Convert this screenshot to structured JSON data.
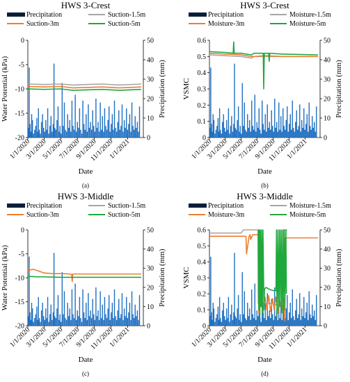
{
  "figure": {
    "panels_order": [
      "a",
      "b",
      "c",
      "d"
    ]
  },
  "colors": {
    "precipitation": "#1F6FC0",
    "suction_1_5m": "#A6A6A6",
    "suction_3m": "#ED7D31",
    "suction_5m": "#1FA83C",
    "axis": "#000000"
  },
  "chart_data": [
    {
      "id": "a",
      "panel_label": "(a)",
      "type": "line",
      "title": "HWS 3-Crest",
      "xlabel": "Date",
      "ylabel_left": "Water Potential (kPa)",
      "ylabel_right": "Precipitation (mm)",
      "ylim_left": [
        -20,
        0
      ],
      "yticks_left": [
        "0",
        "-5",
        "-10",
        "-15",
        "-20"
      ],
      "ylim_right": [
        0,
        50
      ],
      "yticks_right": [
        "0",
        "10",
        "20",
        "30",
        "40",
        "50"
      ],
      "x_ticks": [
        "1/1/2020",
        "3/1/2020",
        "5/1/2020",
        "7/1/2020",
        "9/1/2020",
        "11/1/2020",
        "1/1/2021"
      ],
      "xlim": [
        "2020-01-01",
        "2021-02-28"
      ],
      "legend": [
        "Precipitation",
        "Suction-1.5m",
        "Suction-3m",
        "Suction-5m"
      ],
      "series": [
        {
          "name": "Suction-1.5m",
          "key": "suction_1_5m",
          "x": [
            "2020-01-01",
            "2020-03-01",
            "2020-05-01",
            "2020-06-15",
            "2020-08-01",
            "2020-10-01",
            "2020-12-01",
            "2021-02-20"
          ],
          "values": [
            -9.0,
            -9.1,
            -9.0,
            -9.2,
            -9.1,
            -9.0,
            -9.2,
            -9.0
          ]
        },
        {
          "name": "Suction-3m",
          "key": "suction_3m",
          "x": [
            "2020-01-01",
            "2020-03-01",
            "2020-05-01",
            "2020-06-15",
            "2020-08-01",
            "2020-10-01",
            "2020-12-01",
            "2021-02-20"
          ],
          "values": [
            -9.5,
            -9.6,
            -9.5,
            -9.8,
            -9.7,
            -9.6,
            -9.8,
            -9.6
          ]
        },
        {
          "name": "Suction-5m",
          "key": "suction_5m",
          "x": [
            "2020-01-01",
            "2020-03-01",
            "2020-05-01",
            "2020-06-15",
            "2020-08-01",
            "2020-10-01",
            "2020-12-01",
            "2021-02-20"
          ],
          "values": [
            -10.0,
            -10.1,
            -10.0,
            -10.3,
            -10.2,
            -10.1,
            -10.3,
            -10.1
          ]
        }
      ],
      "precip_series": "precip_2020"
    },
    {
      "id": "b",
      "panel_label": "(b)",
      "type": "line",
      "title": "HWS 3-Crest",
      "xlabel": "Date",
      "ylabel_left": "VSMC",
      "ylabel_right": "Precipitation (mm)",
      "ylim_left": [
        0,
        0.6
      ],
      "yticks_left": [
        "0",
        "0.1",
        "0.2",
        "0.3",
        "0.4",
        "0.5",
        "0.6"
      ],
      "ylim_right": [
        0,
        50
      ],
      "yticks_right": [
        "0",
        "10",
        "20",
        "30",
        "40",
        "50"
      ],
      "x_ticks": [
        "1/1/2020",
        "3/1/2020",
        "5/1/2020",
        "7/1/2020",
        "9/1/2020",
        "11/1/2020",
        "1/1/2021"
      ],
      "xlim": [
        "2020-01-01",
        "2021-02-28"
      ],
      "legend": [
        "Precipitation",
        "Moisture-1.5m",
        "Moisture-3m",
        "Moisture-5m"
      ],
      "series": [
        {
          "name": "Moisture-1.5m",
          "key": "suction_1_5m",
          "x": [
            "2020-01-01",
            "2020-03-01",
            "2020-05-01",
            "2020-06-10",
            "2020-06-20",
            "2020-08-01",
            "2020-10-01",
            "2021-02-20"
          ],
          "values": [
            0.51,
            0.505,
            0.5,
            0.49,
            0.5,
            0.5,
            0.5,
            0.5
          ]
        },
        {
          "name": "Moisture-3m",
          "key": "suction_3m",
          "x": [
            "2020-01-01",
            "2020-03-01",
            "2020-05-01",
            "2020-06-10",
            "2020-06-20",
            "2020-08-01",
            "2020-10-01",
            "2021-02-20"
          ],
          "values": [
            0.52,
            0.515,
            0.51,
            0.5,
            0.5,
            0.505,
            0.5,
            0.5
          ]
        },
        {
          "name": "Moisture-5m",
          "key": "suction_5m",
          "x": [
            "2020-01-01",
            "2020-03-01",
            "2020-04-01",
            "2020-04-03",
            "2020-04-05",
            "2020-05-01",
            "2020-06-10",
            "2020-06-20",
            "2020-07-25",
            "2020-07-27",
            "2020-07-29",
            "2020-08-15",
            "2020-08-17",
            "2020-08-19",
            "2020-10-01",
            "2021-02-20"
          ],
          "values": [
            0.53,
            0.525,
            0.52,
            0.59,
            0.52,
            0.52,
            0.51,
            0.52,
            0.52,
            0.3,
            0.52,
            0.52,
            0.47,
            0.52,
            0.515,
            0.51
          ]
        }
      ],
      "precip_series": "precip_2020"
    },
    {
      "id": "c",
      "panel_label": "(c)",
      "type": "line",
      "title": "HWS 3-Middle",
      "xlabel": "Date",
      "ylabel_left": "Water Potential (kPa)",
      "ylabel_right": "Precipitation (mm)",
      "ylim_left": [
        -20,
        0
      ],
      "yticks_left": [
        "0",
        "-5",
        "-10",
        "-15",
        "-20"
      ],
      "ylim_right": [
        0,
        50
      ],
      "yticks_right": [
        "0",
        "10",
        "20",
        "30",
        "40",
        "50"
      ],
      "x_ticks": [
        "1/1/2020",
        "3/1/2020",
        "5/1/2020",
        "7/1/2020",
        "9/1/2020",
        "11/1/2020",
        "1/1/2021"
      ],
      "xlim": [
        "2020-01-01",
        "2021-02-28"
      ],
      "legend": [
        "Precipitation",
        "Suction-1.5m",
        "Suction-3m",
        "Suction-5m"
      ],
      "series": [
        {
          "name": "Suction-3m",
          "key": "suction_3m",
          "x": [
            "2020-01-01",
            "2020-01-20",
            "2020-02-10",
            "2020-03-01",
            "2020-04-01",
            "2020-05-01",
            "2020-06-01",
            "2020-06-10",
            "2020-06-12",
            "2020-06-14",
            "2020-07-01",
            "2020-08-01",
            "2020-10-01",
            "2020-12-01",
            "2021-02-20"
          ],
          "values": [
            -8.5,
            -8.2,
            -8.6,
            -9.0,
            -9.1,
            -9.1,
            -9.2,
            -9.3,
            -10.8,
            -9.2,
            -9.2,
            -9.2,
            -9.2,
            -9.2,
            -9.2
          ]
        },
        {
          "name": "Suction-5m",
          "key": "suction_5m",
          "x": [
            "2020-01-01",
            "2020-02-01",
            "2020-03-01",
            "2020-05-01",
            "2020-08-01",
            "2020-11-01",
            "2021-02-20"
          ],
          "values": [
            -9.7,
            -9.8,
            -9.8,
            -9.9,
            -9.9,
            -9.9,
            -9.9
          ]
        }
      ],
      "precip_series": "precip_2020"
    },
    {
      "id": "d",
      "panel_label": "(d)",
      "type": "line",
      "title": "HWS 3-Middle",
      "xlabel": "Date",
      "ylabel_left": "VSMC",
      "ylabel_right": "Precipitation (mm)",
      "ylim_left": [
        0,
        0.6
      ],
      "yticks_left": [
        "0",
        "0.1",
        "0.2",
        "0.3",
        "0.4",
        "0.5",
        "0.6"
      ],
      "ylim_right": [
        0,
        50
      ],
      "yticks_right": [
        "0",
        "10",
        "20",
        "30",
        "40",
        "50"
      ],
      "x_ticks": [
        "1/1/2020",
        "3/1/2020",
        "5/1/2020",
        "7/1/2020",
        "9/1/2020",
        "11/1/2020",
        "1/1/2021"
      ],
      "xlim": [
        "2020-01-01",
        "2021-02-28"
      ],
      "legend": [
        "Precipitation",
        "Moisture-1.5m",
        "Moisture-3m",
        "Moisture-5m"
      ],
      "series": [
        {
          "name": "Moisture-1.5m",
          "key": "suction_1_5m",
          "x": [
            "2020-01-01",
            "2020-03-01",
            "2020-05-01",
            "2020-05-10",
            "2020-05-12",
            "2020-06-01",
            "2020-06-15",
            "2020-07-05",
            "2020-07-06",
            "2020-08-01",
            "2020-09-01",
            "2020-09-02",
            "2020-10-10",
            "2020-10-12",
            "2020-10-13",
            "2020-10-25"
          ],
          "values": [
            0.58,
            0.58,
            0.58,
            0.6,
            0.6,
            0.6,
            0.6,
            0.6,
            0.14,
            0.14,
            0.14,
            0.13,
            0.13,
            0.6,
            0.6,
            0.6
          ]
        },
        {
          "name": "Moisture-3m",
          "key": "suction_3m",
          "x": [
            "2020-01-01",
            "2020-03-01",
            "2020-05-01",
            "2020-05-20",
            "2020-05-22",
            "2020-06-01",
            "2020-06-05",
            "2020-06-07",
            "2020-06-15",
            "2020-07-06",
            "2020-07-08",
            "2020-07-12",
            "2020-07-16",
            "2020-07-20",
            "2020-07-25",
            "2020-08-01",
            "2020-08-08",
            "2020-08-15",
            "2020-08-22",
            "2020-08-30",
            "2020-09-05",
            "2020-09-12",
            "2020-09-20",
            "2020-09-28",
            "2020-10-05",
            "2020-10-12",
            "2020-10-15",
            "2020-10-18",
            "2020-11-01",
            "2021-02-20"
          ],
          "values": [
            0.56,
            0.56,
            0.56,
            0.56,
            0.45,
            0.56,
            0.57,
            0.54,
            0.57,
            0.57,
            0.08,
            0.2,
            0.12,
            0.21,
            0.09,
            0.18,
            0.1,
            0.19,
            0.09,
            0.17,
            0.1,
            0.18,
            0.08,
            0.16,
            0.1,
            0.17,
            0.03,
            0.55,
            0.55,
            0.55
          ]
        },
        {
          "name": "Moisture-5m",
          "key": "suction_5m",
          "x": [
            "2020-07-05",
            "2020-07-06",
            "2020-07-08",
            "2020-07-10",
            "2020-07-12",
            "2020-07-14",
            "2020-07-17",
            "2020-07-19",
            "2020-07-22",
            "2020-07-24",
            "2020-07-28",
            "2020-07-30",
            "2020-08-05",
            "2020-08-15",
            "2020-09-01",
            "2020-09-12",
            "2020-09-14",
            "2020-09-16",
            "2020-09-20",
            "2020-09-22",
            "2020-09-26",
            "2020-09-28",
            "2020-10-02",
            "2020-10-04",
            "2020-10-08",
            "2020-10-10",
            "2020-10-14",
            "2020-10-16",
            "2020-10-20",
            "2020-10-22"
          ],
          "values": [
            0.6,
            0.6,
            0.1,
            0.6,
            0.05,
            0.6,
            0.12,
            0.6,
            0.08,
            0.6,
            0.1,
            0.23,
            0.24,
            0.23,
            0.22,
            0.22,
            0.6,
            0.05,
            0.6,
            0.1,
            0.6,
            0.12,
            0.6,
            0.08,
            0.6,
            0.06,
            0.6,
            0.1,
            0.6,
            0.2
          ]
        }
      ],
      "precip_series": "precip_2020"
    }
  ],
  "precip_2020": {
    "name": "Precipitation",
    "x": [
      "2020-01-03",
      "2020-01-06",
      "2020-01-09",
      "2020-01-12",
      "2020-01-15",
      "2020-01-18",
      "2020-01-22",
      "2020-01-26",
      "2020-01-30",
      "2020-02-03",
      "2020-02-06",
      "2020-02-09",
      "2020-02-12",
      "2020-02-16",
      "2020-02-20",
      "2020-02-24",
      "2020-02-28",
      "2020-03-03",
      "2020-03-07",
      "2020-03-10",
      "2020-03-14",
      "2020-03-18",
      "2020-03-22",
      "2020-03-26",
      "2020-03-30",
      "2020-04-03",
      "2020-04-06",
      "2020-04-09",
      "2020-04-13",
      "2020-04-17",
      "2020-04-21",
      "2020-04-25",
      "2020-04-28",
      "2020-05-02",
      "2020-05-06",
      "2020-05-10",
      "2020-05-14",
      "2020-05-18",
      "2020-05-22",
      "2020-05-26",
      "2020-05-30",
      "2020-06-03",
      "2020-06-07",
      "2020-06-11",
      "2020-06-15",
      "2020-06-19",
      "2020-06-23",
      "2020-06-27",
      "2020-07-01",
      "2020-07-05",
      "2020-07-09",
      "2020-07-13",
      "2020-07-17",
      "2020-07-21",
      "2020-07-25",
      "2020-07-29",
      "2020-08-02",
      "2020-08-06",
      "2020-08-10",
      "2020-08-14",
      "2020-08-18",
      "2020-08-22",
      "2020-08-26",
      "2020-08-30",
      "2020-09-03",
      "2020-09-07",
      "2020-09-11",
      "2020-09-15",
      "2020-09-19",
      "2020-09-23",
      "2020-09-27",
      "2020-10-01",
      "2020-10-05",
      "2020-10-09",
      "2020-10-13",
      "2020-10-17",
      "2020-10-21",
      "2020-10-25",
      "2020-10-29",
      "2020-11-02",
      "2020-11-06",
      "2020-11-10",
      "2020-11-14",
      "2020-11-18",
      "2020-11-22",
      "2020-11-26",
      "2020-11-30",
      "2020-12-04",
      "2020-12-08",
      "2020-12-12",
      "2020-12-16",
      "2020-12-20",
      "2020-12-24",
      "2020-12-28",
      "2021-01-01",
      "2021-01-05",
      "2021-01-09",
      "2021-01-13",
      "2021-01-17",
      "2021-01-21",
      "2021-01-25",
      "2021-01-29",
      "2021-02-02",
      "2021-02-06",
      "2021-02-10",
      "2021-02-14"
    ],
    "values": [
      5,
      36,
      7,
      3,
      12,
      9,
      2,
      4,
      6,
      10,
      3,
      15,
      4,
      2,
      8,
      12,
      5,
      3,
      9,
      4,
      15,
      2,
      6,
      11,
      3,
      7,
      38,
      5,
      4,
      9,
      16,
      3,
      6,
      2,
      28,
      6,
      18,
      4,
      3,
      12,
      5,
      9,
      3,
      19,
      6,
      4,
      22,
      3,
      8,
      5,
      15,
      4,
      2,
      19,
      7,
      4,
      12,
      3,
      17,
      5,
      8,
      4,
      14,
      6,
      3,
      20,
      5,
      8,
      3,
      18,
      4,
      11,
      3,
      15,
      6,
      4,
      9,
      16,
      3,
      7,
      12,
      4,
      19,
      5,
      3,
      8,
      14,
      4,
      6,
      17,
      3,
      9,
      5,
      15,
      4,
      7,
      12,
      3,
      18,
      6,
      4,
      11,
      5,
      8,
      3,
      16
    ]
  }
}
